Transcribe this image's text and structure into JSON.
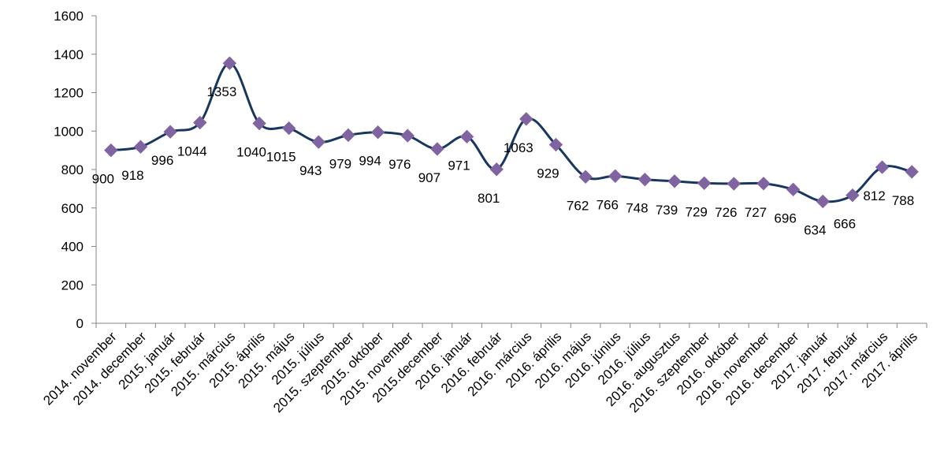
{
  "chart_data": {
    "type": "line",
    "title": "",
    "xlabel": "",
    "ylabel": "",
    "ylim": [
      0,
      1600
    ],
    "yticks": [
      0,
      200,
      400,
      600,
      800,
      1000,
      1200,
      1400,
      1600
    ],
    "grid": false,
    "legend": "none",
    "smooth": true,
    "colors": {
      "line": "#17375E",
      "marker": "#8064A2",
      "axis": "#868686"
    },
    "categories": [
      "2014. november",
      "2014. december",
      "2015. január",
      "2015. február",
      "2015. március",
      "2015. április",
      "2015. május",
      "2015. július",
      "2015. szeptember",
      "2015. október",
      "2015. november",
      "2015.december",
      "2016. január",
      "2016. február",
      "2016. március",
      "2016. április",
      "2016. május",
      "2016. június",
      "2016. július",
      "2016. augusztus",
      "2016. szeptember",
      "2016. október",
      "2016. november",
      "2016. december",
      "2017. január",
      "2017. február",
      "2017. március",
      "2017. április"
    ],
    "series": [
      {
        "values": [
          900,
          918,
          996,
          1044,
          1353,
          1040,
          1015,
          943,
          979,
          994,
          976,
          907,
          971,
          801,
          1063,
          929,
          762,
          766,
          748,
          739,
          729,
          726,
          727,
          696,
          634,
          666,
          812,
          788
        ]
      }
    ],
    "data_labels": [
      "900",
      "918",
      "996",
      "1044",
      "1353",
      "1040",
      "1015",
      "943",
      "979",
      "994",
      "976",
      "907",
      "971",
      "801",
      "1063",
      "929",
      "762",
      "766",
      "748",
      "739",
      "729",
      "726",
      "727",
      "696",
      "634",
      "666",
      "812",
      "788"
    ]
  }
}
